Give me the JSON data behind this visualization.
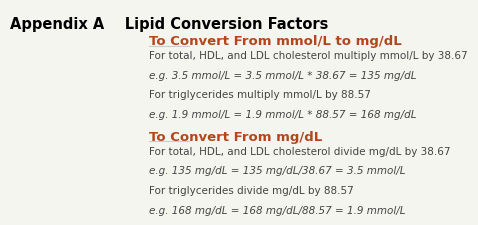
{
  "title": "Appendix A    Lipid Conversion Factors",
  "title_color": "#000000",
  "title_fontsize": 10.5,
  "background_color": "#f5f5f0",
  "section1_heading": "To Convert From mmol/L to mg/dL",
  "section2_heading": "To Convert From mg/dL",
  "heading_color": "#b5451b",
  "heading_fontsize": 9.5,
  "line_color": "#cccccc",
  "body_color": "#444444",
  "body_fontsize": 7.5,
  "lines_section1": [
    "For total, HDL, and LDL cholesterol multiply mmol/L by 38.67",
    "e.g. 3.5 mmol/L = 3.5 mmol/L * 38.67 = 135 mg/dL",
    "For triglycerides multiply mmol/L by 88.57",
    "e.g. 1.9 mmol/L = 1.9 mmol/L * 88.57 = 168 mg/dL"
  ],
  "lines_section2": [
    "For total, HDL, and LDL cholesterol divide mg/dL by 38.67",
    "e.g. 135 mg/dL = 135 mg/dL/38.67 = 3.5 mmol/L",
    "For triglycerides divide mg/dL by 88.57",
    "e.g. 168 mg/dL = 168 mg/dL/88.57 = 1.9 mmol/L"
  ]
}
